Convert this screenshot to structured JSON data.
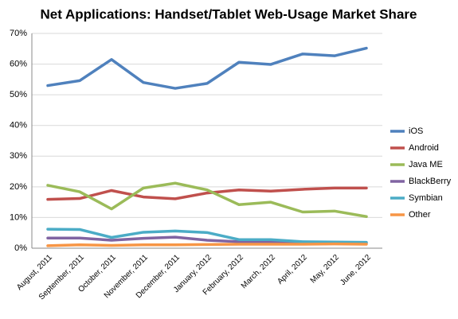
{
  "chart_data": {
    "type": "line",
    "title": "Net Applications: Handset/Tablet Web-Usage Market Share",
    "categories": [
      "August, 2011",
      "September, 2011",
      "October, 2011",
      "November, 2011",
      "December, 2011",
      "January, 2012",
      "February, 2012",
      "March, 2012",
      "April, 2012",
      "May, 2012",
      "June, 2012"
    ],
    "series": [
      {
        "name": "iOS",
        "color": "#4f81bd",
        "values": [
          53.0,
          54.6,
          61.5,
          54.0,
          52.1,
          53.7,
          60.6,
          59.9,
          63.3,
          62.7,
          65.2
        ]
      },
      {
        "name": "Android",
        "color": "#c0504d",
        "values": [
          15.9,
          16.2,
          18.8,
          16.7,
          16.1,
          18.0,
          19.0,
          18.6,
          19.2,
          19.6,
          19.6
        ]
      },
      {
        "name": "Java ME",
        "color": "#9bbb59",
        "values": [
          20.5,
          18.4,
          12.8,
          19.6,
          21.2,
          19.0,
          14.2,
          15.0,
          11.8,
          12.1,
          10.3
        ]
      },
      {
        "name": "BlackBerry",
        "color": "#8064a2",
        "values": [
          3.3,
          3.3,
          2.6,
          3.2,
          3.6,
          2.6,
          2.1,
          2.1,
          2.0,
          1.8,
          1.7
        ]
      },
      {
        "name": "Symbian",
        "color": "#4bacc6",
        "values": [
          6.2,
          6.1,
          3.5,
          5.2,
          5.6,
          5.1,
          2.8,
          2.8,
          2.1,
          2.0,
          1.9
        ]
      },
      {
        "name": "Other",
        "color": "#f79646",
        "values": [
          0.8,
          1.1,
          0.9,
          1.1,
          1.1,
          1.2,
          1.3,
          1.3,
          1.3,
          1.4,
          1.3
        ]
      }
    ],
    "ylim": [
      0,
      70
    ],
    "yticks": [
      {
        "value": 0,
        "label": "0%"
      },
      {
        "value": 10,
        "label": "10%"
      },
      {
        "value": 20,
        "label": "20%"
      },
      {
        "value": 30,
        "label": "30%"
      },
      {
        "value": 40,
        "label": "40%"
      },
      {
        "value": 50,
        "label": "50%"
      },
      {
        "value": 60,
        "label": "60%"
      },
      {
        "value": 70,
        "label": "70%"
      }
    ],
    "grid": true,
    "legend": "right"
  }
}
